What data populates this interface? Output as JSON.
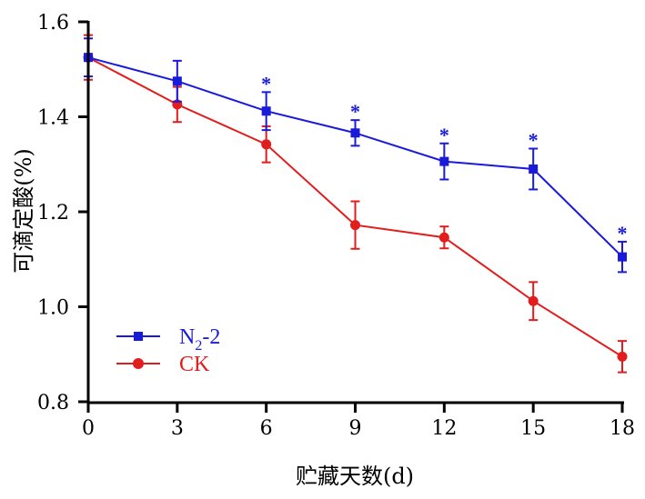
{
  "chart_data": {
    "type": "line",
    "xlabel": "贮藏天数(d)",
    "ylabel": "可滴定酸(%)",
    "xlim": [
      0,
      18
    ],
    "ylim": [
      0.8,
      1.6
    ],
    "x": [
      0,
      3,
      6,
      9,
      12,
      15,
      18
    ],
    "x_ticks": [
      0,
      3,
      6,
      9,
      12,
      15,
      18
    ],
    "y_ticks": [
      0.8,
      1.0,
      1.2,
      1.4,
      1.6
    ],
    "x_tick_labels": [
      "0",
      "3",
      "6",
      "9",
      "12",
      "15",
      "18"
    ],
    "y_tick_labels": [
      "0.8",
      "1.0",
      "1.2",
      "1.4",
      "1.6"
    ],
    "legend_position": "bottom-left",
    "grid": false,
    "series": [
      {
        "name": "N2-2",
        "name_base": "N",
        "name_sub": "2",
        "name_tail": "-2",
        "color": "#1a1adb",
        "marker": "square",
        "values": [
          1.525,
          1.475,
          1.412,
          1.366,
          1.306,
          1.29,
          1.105
        ],
        "errors": [
          0.04,
          0.043,
          0.04,
          0.027,
          0.038,
          0.043,
          0.032
        ],
        "significance": [
          "",
          "",
          "*",
          "*",
          "*",
          "*",
          "*"
        ]
      },
      {
        "name": "CK",
        "color": "#e21d1d",
        "marker": "circle",
        "values": [
          1.525,
          1.426,
          1.342,
          1.172,
          1.146,
          1.012,
          0.895
        ],
        "errors": [
          0.047,
          0.037,
          0.038,
          0.05,
          0.023,
          0.04,
          0.033
        ],
        "significance": [
          "",
          "",
          "",
          "",
          "",
          "",
          ""
        ]
      }
    ]
  }
}
